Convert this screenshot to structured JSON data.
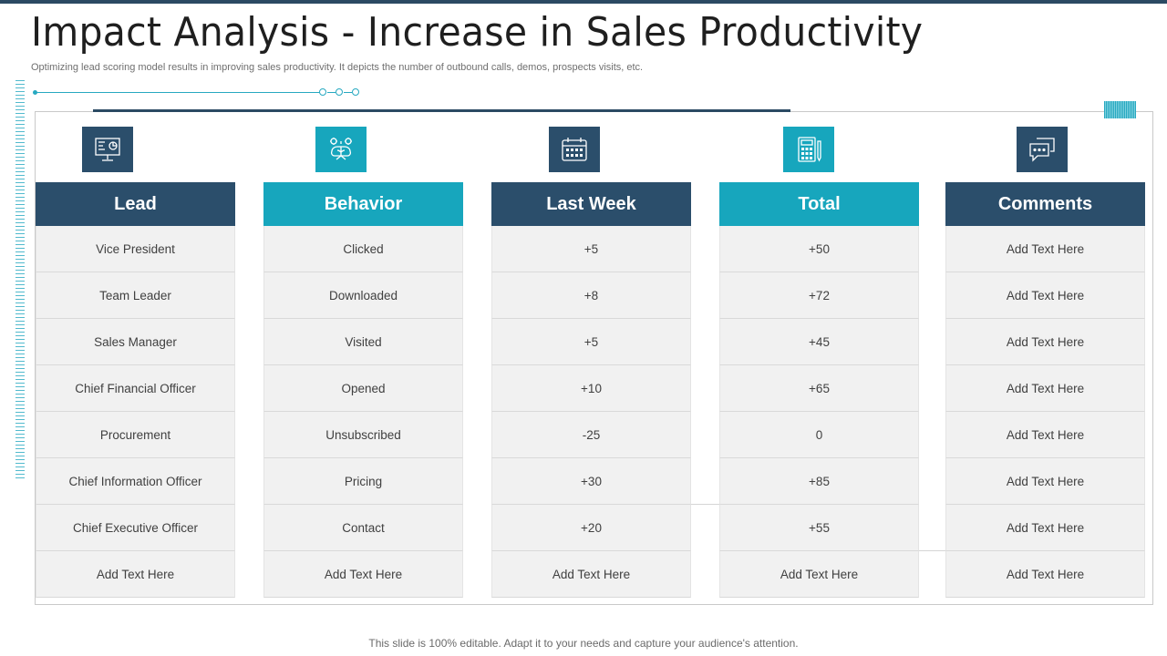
{
  "slide": {
    "title": "Impact Analysis - Increase in Sales Productivity",
    "subtitle": "Optimizing lead scoring model results in improving sales productivity. It depicts the number of outbound calls, demos, prospects visits, etc.",
    "footer": "This slide is 100% editable. Adapt it to your needs and capture your audience's attention."
  },
  "colors": {
    "dark": "#2b4e6b",
    "teal": "#17a6bd"
  },
  "columns": [
    {
      "header": "Lead",
      "icon": "presentation-board-icon",
      "rows": [
        "Vice President",
        "Team Leader",
        "Sales Manager",
        "Chief Financial Officer",
        "Procurement",
        "Chief Information Officer",
        "Chief Executive Officer",
        "Add Text Here"
      ]
    },
    {
      "header": "Behavior",
      "icon": "brain-gears-icon",
      "rows": [
        "Clicked",
        "Downloaded",
        "Visited",
        "Opened",
        "Unsubscribed",
        "Pricing",
        "Contact",
        "Add Text Here"
      ]
    },
    {
      "header": "Last Week",
      "icon": "calendar-icon",
      "rows": [
        "+5",
        "+8",
        "+5",
        "+10",
        "-25",
        "+30",
        "+20",
        "Add Text Here"
      ]
    },
    {
      "header": "Total",
      "icon": "calculator-icon",
      "rows": [
        "+50",
        "+72",
        "+45",
        "+65",
        "0",
        "+85",
        "+55",
        "Add Text Here"
      ]
    },
    {
      "header": "Comments",
      "icon": "chat-bubbles-icon",
      "rows": [
        "Add Text Here",
        "Add Text Here",
        "Add Text Here",
        "Add Text Here",
        "Add Text Here",
        "Add Text Here",
        "Add Text Here",
        "Add Text Here"
      ]
    }
  ]
}
